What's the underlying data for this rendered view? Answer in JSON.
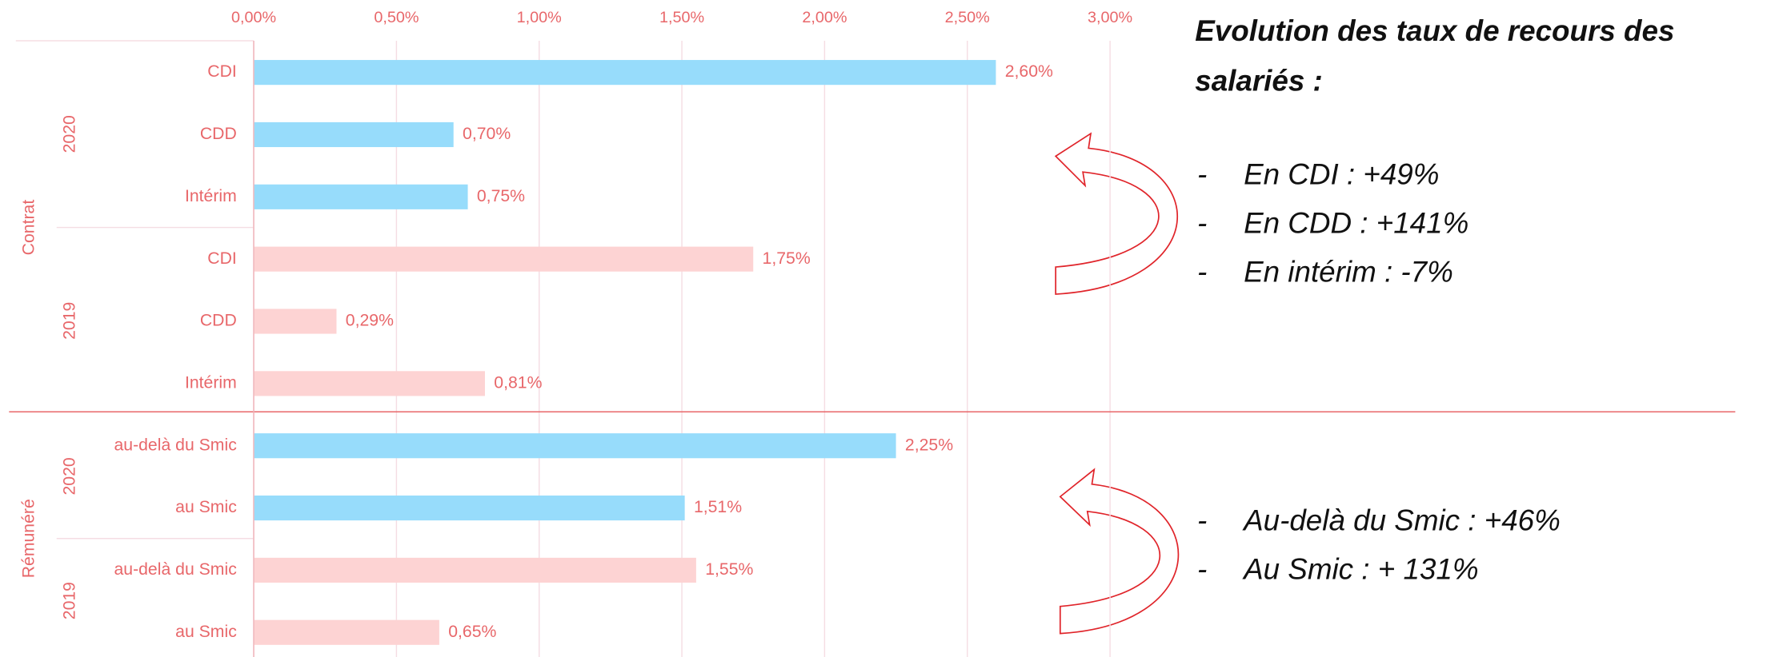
{
  "chart_data": {
    "type": "bar",
    "orientation": "horizontal",
    "xlim": [
      0,
      3
    ],
    "xticks": [
      {
        "value": 0,
        "label": "0,00%"
      },
      {
        "value": 0.5,
        "label": "0,50%"
      },
      {
        "value": 1,
        "label": "1,00%"
      },
      {
        "value": 1.5,
        "label": "1,50%"
      },
      {
        "value": 2,
        "label": "2,00%"
      },
      {
        "value": 2.5,
        "label": "2,50%"
      },
      {
        "value": 3,
        "label": "3,00%"
      }
    ],
    "grid": true,
    "groups": [
      {
        "label": "Contrat",
        "subgroups": [
          {
            "label": "2020",
            "color": "#97dcfb",
            "categories": [
              "CDI",
              "CDD",
              "Intérim"
            ],
            "values": [
              2.6,
              0.7,
              0.75
            ],
            "value_labels": [
              "2,60%",
              "0,70%",
              "0,75%"
            ]
          },
          {
            "label": "2019",
            "color": "#fdd3d3",
            "categories": [
              "CDI",
              "CDD",
              "Intérim"
            ],
            "values": [
              1.75,
              0.29,
              0.81
            ],
            "value_labels": [
              "1,75%",
              "0,29%",
              "0,81%"
            ]
          }
        ]
      },
      {
        "label": "Rémunéré",
        "subgroups": [
          {
            "label": "2020",
            "color": "#97dcfb",
            "categories": [
              "au-delà du Smic",
              "au Smic"
            ],
            "values": [
              2.25,
              1.51
            ],
            "value_labels": [
              "2,25%",
              "1,51%"
            ]
          },
          {
            "label": "2019",
            "color": "#fdd3d3",
            "categories": [
              "au-delà du Smic",
              "au Smic"
            ],
            "values": [
              1.55,
              0.65
            ],
            "value_labels": [
              "1,55%",
              "0,65%"
            ]
          }
        ]
      }
    ],
    "annotations": {
      "title": "Evolution des taux de recours des salariés :",
      "marker": "-",
      "contrat_notes": [
        "En CDI : +49%",
        "En CDD : +141%",
        "En intérim : -7%"
      ],
      "remuneration_notes": [
        "Au-delà du Smic : +46%",
        "Au Smic : + 131%"
      ]
    }
  }
}
